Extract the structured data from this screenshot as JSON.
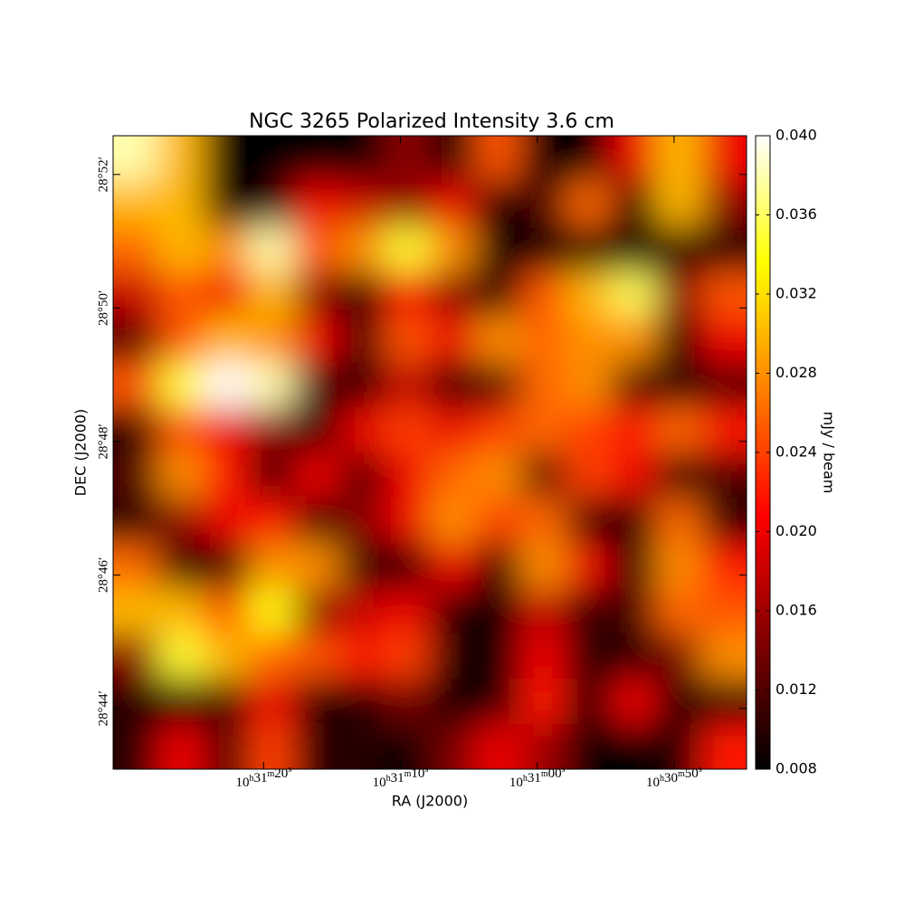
{
  "chart_data": {
    "type": "heatmap",
    "title": "NGC 3265 Polarized Intensity 3.6 cm",
    "xlabel": "RA (J2000)",
    "ylabel": "DEC (J2000)",
    "xlim": [
      37891,
      37844.7
    ],
    "xticks": [
      {
        "value": 37880,
        "label": "10h31m20s"
      },
      {
        "value": 37870,
        "label": "10h31m10s"
      },
      {
        "value": 37860,
        "label": "10h31m00s"
      },
      {
        "value": 37850,
        "label": "10h30m50s"
      }
    ],
    "ylim": [
      1723.09,
      1732.58
    ],
    "yticks": [
      {
        "value": 1724,
        "label": "28°44′"
      },
      {
        "value": 1726,
        "label": "28°46′"
      },
      {
        "value": 1728,
        "label": "28°48′"
      },
      {
        "value": 1730,
        "label": "28°50′"
      },
      {
        "value": 1732,
        "label": "28°52′"
      }
    ],
    "colormap": [
      "#000000",
      "#800000",
      "#ff0000",
      "#ff8000",
      "#ffff00",
      "#ffffff"
    ],
    "colorbar": {
      "label": "mJy / beam",
      "lim": [
        0.008,
        0.04
      ],
      "ticks": [
        0.008,
        0.012,
        0.016,
        {
          "value": 0.02,
          "label": "0.020"
        },
        0.024,
        0.028,
        0.032,
        0.036,
        {
          "value": 0.04,
          "label": "0.040"
        }
      ]
    },
    "z": [
      [
        0.038,
        0.03,
        0.008,
        0.008,
        0.008,
        0.008,
        0.015,
        0.008,
        0.025,
        0.008,
        0.008,
        0.02,
        0.03,
        0.02
      ],
      [
        0.03,
        0.03,
        0.008,
        0.01,
        0.02,
        0.018,
        0.015,
        0.02,
        0.008,
        0.012,
        0.026,
        0.01,
        0.03,
        0.015
      ],
      [
        0.026,
        0.03,
        0.028,
        0.038,
        0.025,
        0.028,
        0.035,
        0.028,
        0.008,
        0.008,
        0.01,
        0.008,
        0.01,
        0.008
      ],
      [
        0.018,
        0.025,
        0.02,
        0.03,
        0.015,
        0.01,
        0.022,
        0.015,
        0.01,
        0.025,
        0.03,
        0.036,
        0.015,
        0.025
      ],
      [
        0.012,
        0.025,
        0.03,
        0.028,
        0.02,
        0.012,
        0.025,
        0.02,
        0.028,
        0.026,
        0.028,
        0.028,
        0.01,
        0.02
      ],
      [
        0.025,
        0.035,
        0.04,
        0.038,
        0.012,
        0.01,
        0.018,
        0.01,
        0.012,
        0.026,
        0.028,
        0.012,
        0.01,
        0.012
      ],
      [
        0.01,
        0.025,
        0.02,
        0.015,
        0.01,
        0.02,
        0.024,
        0.02,
        0.024,
        0.026,
        0.024,
        0.022,
        0.026,
        0.022
      ],
      [
        0.012,
        0.028,
        0.022,
        0.01,
        0.02,
        0.012,
        0.02,
        0.026,
        0.028,
        0.012,
        0.024,
        0.02,
        0.01,
        0.012
      ],
      [
        0.01,
        0.015,
        0.02,
        0.022,
        0.01,
        0.015,
        0.02,
        0.028,
        0.024,
        0.026,
        0.01,
        0.01,
        0.026,
        0.01
      ],
      [
        0.026,
        0.01,
        0.01,
        0.028,
        0.028,
        0.01,
        0.008,
        0.02,
        0.01,
        0.028,
        0.02,
        0.01,
        0.028,
        0.022
      ],
      [
        0.03,
        0.03,
        0.025,
        0.034,
        0.015,
        0.018,
        0.02,
        0.01,
        0.008,
        0.018,
        0.01,
        0.012,
        0.026,
        0.025
      ],
      [
        0.015,
        0.035,
        0.03,
        0.026,
        0.025,
        0.022,
        0.024,
        0.01,
        0.008,
        0.02,
        0.01,
        0.01,
        0.014,
        0.028
      ],
      [
        0.01,
        0.008,
        0.012,
        0.02,
        0.01,
        0.01,
        0.014,
        0.008,
        0.01,
        0.022,
        0.01,
        0.02,
        0.01,
        0.01
      ],
      [
        0.01,
        0.02,
        0.012,
        0.024,
        0.01,
        0.01,
        0.008,
        0.014,
        0.02,
        0.016,
        0.008,
        0.008,
        0.01,
        0.022
      ]
    ]
  }
}
